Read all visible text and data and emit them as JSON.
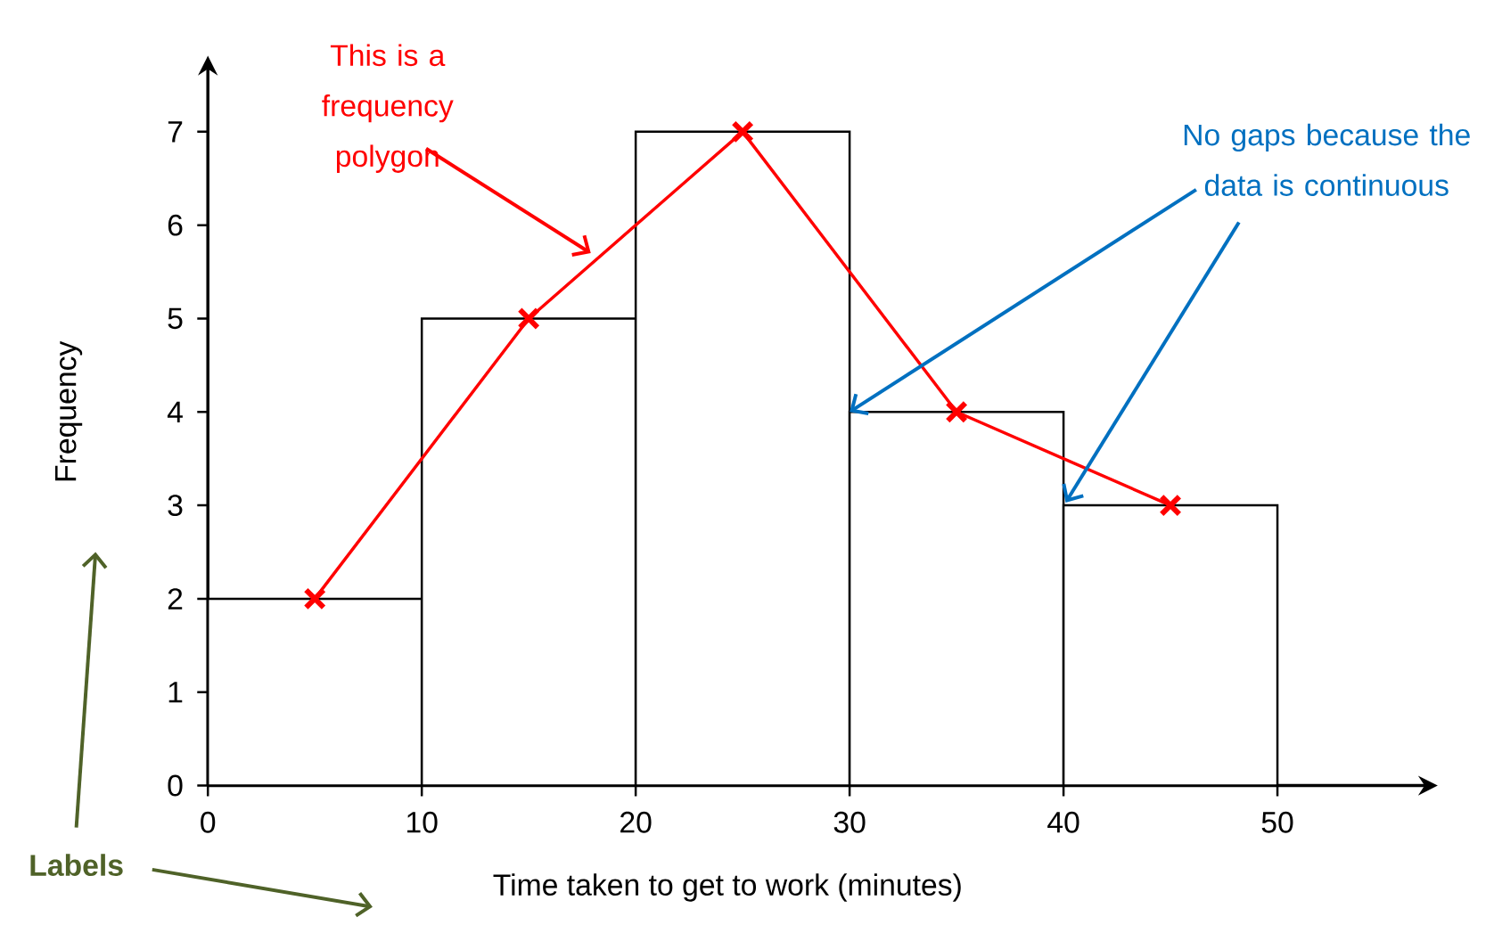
{
  "chart_data": {
    "type": "histogram",
    "xlabel": "Time taken to get to work (minutes)",
    "ylabel": "Frequency",
    "bins": [
      0,
      10,
      20,
      30,
      40,
      50
    ],
    "values": [
      2,
      5,
      7,
      4,
      3
    ],
    "color": "#ffffff",
    "xlim": [
      0,
      57
    ],
    "ylim": [
      0,
      7.7
    ],
    "xticks": [
      0,
      10,
      20,
      30,
      40,
      50
    ],
    "yticks": [
      0,
      1,
      2,
      3,
      4,
      5,
      6,
      7
    ],
    "marker": "cross",
    "series": [
      {
        "type": "line",
        "x": [
          5,
          15,
          25,
          35,
          45
        ],
        "values": [
          2,
          5,
          7,
          4,
          3
        ],
        "color": "#ff0000"
      }
    ],
    "annotations": [
      "This is a frequency polygon",
      {
        "text": "No gaps because the data is continuous",
        "x": 30,
        "y": 4
      },
      "Labels"
    ]
  }
}
